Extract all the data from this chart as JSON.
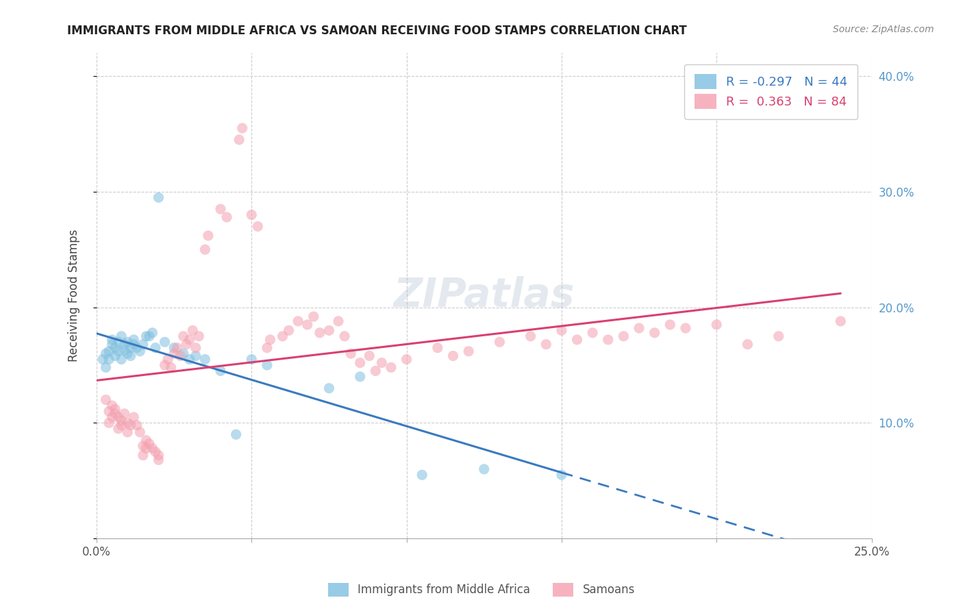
{
  "title": "IMMIGRANTS FROM MIDDLE AFRICA VS SAMOAN RECEIVING FOOD STAMPS CORRELATION CHART",
  "source": "Source: ZipAtlas.com",
  "ylabel": "Receiving Food Stamps",
  "xlim": [
    0.0,
    0.25
  ],
  "ylim": [
    0.0,
    0.42
  ],
  "xticks": [
    0.0,
    0.05,
    0.1,
    0.15,
    0.2,
    0.25
  ],
  "xticklabels": [
    "0.0%",
    "",
    "",
    "",
    "",
    "25.0%"
  ],
  "yticks": [
    0.0,
    0.1,
    0.2,
    0.3,
    0.4
  ],
  "yticklabels_right": [
    "",
    "10.0%",
    "20.0%",
    "30.0%",
    "40.0%"
  ],
  "legend_labels": [
    "Immigrants from Middle Africa",
    "Samoans"
  ],
  "r_blue": -0.297,
  "n_blue": 44,
  "r_pink": 0.363,
  "n_pink": 84,
  "blue_color": "#7fbfdf",
  "pink_color": "#f4a0b0",
  "blue_line_color": "#3a7abf",
  "pink_line_color": "#d94070",
  "watermark": "ZIPatlas",
  "blue_scatter": [
    [
      0.002,
      0.155
    ],
    [
      0.003,
      0.16
    ],
    [
      0.003,
      0.148
    ],
    [
      0.004,
      0.162
    ],
    [
      0.004,
      0.155
    ],
    [
      0.005,
      0.168
    ],
    [
      0.005,
      0.172
    ],
    [
      0.006,
      0.158
    ],
    [
      0.006,
      0.165
    ],
    [
      0.007,
      0.162
    ],
    [
      0.007,
      0.17
    ],
    [
      0.008,
      0.175
    ],
    [
      0.008,
      0.155
    ],
    [
      0.009,
      0.163
    ],
    [
      0.009,
      0.168
    ],
    [
      0.01,
      0.17
    ],
    [
      0.01,
      0.16
    ],
    [
      0.011,
      0.158
    ],
    [
      0.011,
      0.165
    ],
    [
      0.012,
      0.168
    ],
    [
      0.012,
      0.172
    ],
    [
      0.013,
      0.165
    ],
    [
      0.014,
      0.162
    ],
    [
      0.015,
      0.168
    ],
    [
      0.016,
      0.175
    ],
    [
      0.017,
      0.175
    ],
    [
      0.018,
      0.178
    ],
    [
      0.019,
      0.165
    ],
    [
      0.02,
      0.295
    ],
    [
      0.022,
      0.17
    ],
    [
      0.025,
      0.165
    ],
    [
      0.028,
      0.16
    ],
    [
      0.03,
      0.155
    ],
    [
      0.032,
      0.158
    ],
    [
      0.035,
      0.155
    ],
    [
      0.04,
      0.145
    ],
    [
      0.045,
      0.09
    ],
    [
      0.05,
      0.155
    ],
    [
      0.055,
      0.15
    ],
    [
      0.075,
      0.13
    ],
    [
      0.085,
      0.14
    ],
    [
      0.105,
      0.055
    ],
    [
      0.125,
      0.06
    ],
    [
      0.15,
      0.055
    ]
  ],
  "pink_scatter": [
    [
      0.003,
      0.12
    ],
    [
      0.004,
      0.11
    ],
    [
      0.004,
      0.1
    ],
    [
      0.005,
      0.115
    ],
    [
      0.005,
      0.105
    ],
    [
      0.006,
      0.112
    ],
    [
      0.006,
      0.108
    ],
    [
      0.007,
      0.105
    ],
    [
      0.007,
      0.095
    ],
    [
      0.008,
      0.102
    ],
    [
      0.008,
      0.098
    ],
    [
      0.009,
      0.108
    ],
    [
      0.01,
      0.1
    ],
    [
      0.01,
      0.092
    ],
    [
      0.011,
      0.098
    ],
    [
      0.012,
      0.105
    ],
    [
      0.013,
      0.098
    ],
    [
      0.014,
      0.092
    ],
    [
      0.015,
      0.08
    ],
    [
      0.015,
      0.072
    ],
    [
      0.016,
      0.085
    ],
    [
      0.016,
      0.078
    ],
    [
      0.017,
      0.082
    ],
    [
      0.018,
      0.078
    ],
    [
      0.019,
      0.075
    ],
    [
      0.02,
      0.072
    ],
    [
      0.02,
      0.068
    ],
    [
      0.022,
      0.15
    ],
    [
      0.023,
      0.155
    ],
    [
      0.024,
      0.148
    ],
    [
      0.025,
      0.16
    ],
    [
      0.026,
      0.165
    ],
    [
      0.027,
      0.158
    ],
    [
      0.028,
      0.175
    ],
    [
      0.029,
      0.168
    ],
    [
      0.03,
      0.172
    ],
    [
      0.031,
      0.18
    ],
    [
      0.032,
      0.165
    ],
    [
      0.033,
      0.175
    ],
    [
      0.035,
      0.25
    ],
    [
      0.036,
      0.262
    ],
    [
      0.04,
      0.285
    ],
    [
      0.042,
      0.278
    ],
    [
      0.046,
      0.345
    ],
    [
      0.047,
      0.355
    ],
    [
      0.05,
      0.28
    ],
    [
      0.052,
      0.27
    ],
    [
      0.055,
      0.165
    ],
    [
      0.056,
      0.172
    ],
    [
      0.06,
      0.175
    ],
    [
      0.062,
      0.18
    ],
    [
      0.065,
      0.188
    ],
    [
      0.068,
      0.185
    ],
    [
      0.07,
      0.192
    ],
    [
      0.072,
      0.178
    ],
    [
      0.075,
      0.18
    ],
    [
      0.078,
      0.188
    ],
    [
      0.08,
      0.175
    ],
    [
      0.082,
      0.16
    ],
    [
      0.085,
      0.152
    ],
    [
      0.088,
      0.158
    ],
    [
      0.09,
      0.145
    ],
    [
      0.092,
      0.152
    ],
    [
      0.095,
      0.148
    ],
    [
      0.1,
      0.155
    ],
    [
      0.11,
      0.165
    ],
    [
      0.115,
      0.158
    ],
    [
      0.12,
      0.162
    ],
    [
      0.13,
      0.17
    ],
    [
      0.14,
      0.175
    ],
    [
      0.145,
      0.168
    ],
    [
      0.15,
      0.18
    ],
    [
      0.155,
      0.172
    ],
    [
      0.16,
      0.178
    ],
    [
      0.165,
      0.172
    ],
    [
      0.17,
      0.175
    ],
    [
      0.175,
      0.182
    ],
    [
      0.18,
      0.178
    ],
    [
      0.185,
      0.185
    ],
    [
      0.19,
      0.182
    ],
    [
      0.2,
      0.185
    ],
    [
      0.21,
      0.168
    ],
    [
      0.22,
      0.175
    ],
    [
      0.24,
      0.188
    ]
  ],
  "background_color": "#ffffff",
  "grid_color": "#cccccc"
}
